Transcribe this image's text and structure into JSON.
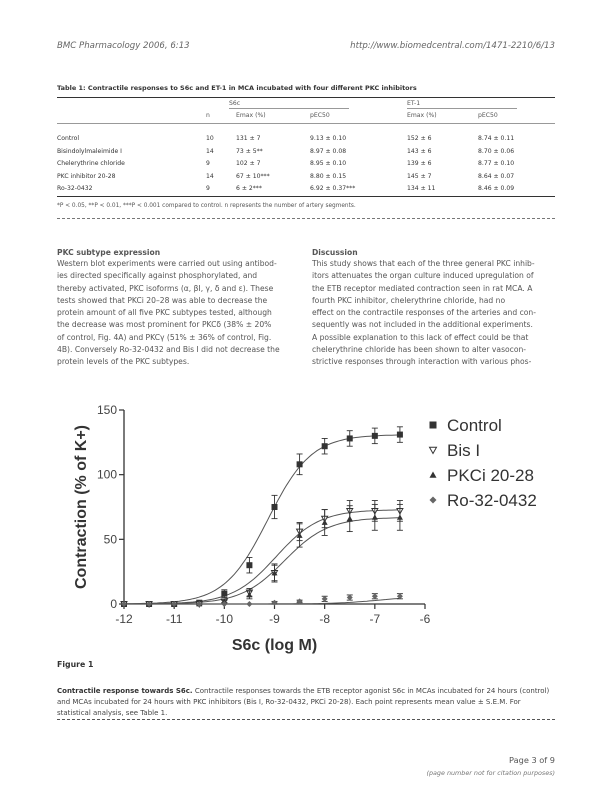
{
  "header": {
    "journal": "BMC Pharmacology 2006, 6:13",
    "url": "http://www.biomedcentral.com/1471-2210/6/13"
  },
  "table": {
    "title": "Table 1: Contractile responses to S6c and ET-1 in MCA incubated with four different PKC inhibitors",
    "group1": "S6c",
    "group2": "ET-1",
    "col_n": "n",
    "col_emax1": "Emax (%)",
    "col_pec1": "pEC50",
    "col_emax2": "Emax (%)",
    "col_pec2": "pEC50",
    "rows": [
      {
        "name": "Control",
        "n": "10",
        "emax1": "131 ± 7",
        "pec1": "9.13 ± 0.10",
        "emax2": "152 ± 6",
        "pec2": "8.74 ± 0.11"
      },
      {
        "name": "Bisindolylmaleimide I",
        "n": "14",
        "emax1": "73 ± 5**",
        "pec1": "8.97 ± 0.08",
        "emax2": "143 ± 6",
        "pec2": "8.70 ± 0.06"
      },
      {
        "name": "Chelerythrine chloride",
        "n": "9",
        "emax1": "102 ± 7",
        "pec1": "8.95 ± 0.10",
        "emax2": "139 ± 6",
        "pec2": "8.77 ± 0.10"
      },
      {
        "name": "PKC inhibitor 20-28",
        "n": "14",
        "emax1": "67 ± 10***",
        "pec1": "8.80 ± 0.15",
        "emax2": "145 ± 7",
        "pec2": "8.64 ± 0.07"
      },
      {
        "name": "Ro-32-0432",
        "n": "9",
        "emax1": "6 ± 2***",
        "pec1": "6.92 ± 0.37***",
        "emax2": "134 ± 11",
        "pec2": "8.46 ± 0.09"
      }
    ],
    "footnote": "*P < 0.05, **P < 0.01, ***P < 0.001 compared to control. n represents the number of artery segments."
  },
  "left_col": {
    "heading": "PKC subtype expression",
    "lines": [
      "Western blot experiments were carried out using antibod-",
      "ies directed specifically against phosphorylated, and",
      "thereby activated, PKC isoforms (α, βI, γ, δ and ε). These",
      "tests showed that PKCi 20–28 was able to decrease the",
      "protein amount of all five PKC subtypes tested, although",
      "the decrease was most prominent for PKCδ (38% ± 20%",
      "of control, Fig. 4A) and PKCγ (51% ± 36% of control, Fig.",
      "4B). Conversely Ro-32-0432 and Bis I did not decrease the",
      "protein levels of the PKC subtypes."
    ]
  },
  "right_col": {
    "heading": "Discussion",
    "lines": [
      "This study shows that each of the three general PKC inhib-",
      "itors attenuates the organ culture induced upregulation of",
      "the ETB receptor mediated contraction seen in rat MCA. A",
      "fourth PKC inhibitor, chelerythrine chloride, had no",
      "effect on the contractile responses of the arteries and con-",
      "sequently was not included in the additional experiments.",
      "A possible explanation to this lack of effect could be that",
      "chelerythrine chloride has been shown to alter vasocon-",
      "strictive responses through interaction with various phos-"
    ]
  },
  "chart_data": {
    "type": "scatter",
    "xlabel": "S6c (log M)",
    "ylabel": "Contraction (% of K+)",
    "xlim": [
      -12,
      -6
    ],
    "ylim": [
      0,
      150
    ],
    "xticks": [
      "-12",
      "-11",
      "-10",
      "-9",
      "-8",
      "-7",
      "-6"
    ],
    "yticks": [
      "0",
      "50",
      "100",
      "150"
    ],
    "x": [
      -12,
      -11.5,
      -11,
      -10.5,
      -10,
      -9.5,
      -9,
      -8.5,
      -8,
      -7.5,
      -7,
      -6.5
    ],
    "series": [
      {
        "name": "Control",
        "marker": "square",
        "values": [
          0,
          0,
          0,
          1,
          8,
          30,
          75,
          108,
          122,
          128,
          130,
          131
        ],
        "errors": [
          0,
          0,
          0,
          1,
          3,
          6,
          9,
          8,
          6,
          6,
          6,
          6
        ],
        "curve_emax": 131,
        "curve_pec50": 9.13
      },
      {
        "name": "Bis I",
        "marker": "triangle-down",
        "values": [
          0,
          0,
          0,
          0,
          2,
          9,
          24,
          56,
          66,
          72,
          72,
          72
        ],
        "errors": [
          0,
          0,
          0,
          0,
          1,
          3,
          6,
          7,
          7,
          8,
          8,
          8
        ],
        "curve_emax": 73,
        "curve_pec50": 8.97
      },
      {
        "name": "PKCi 20-28",
        "marker": "triangle-up",
        "values": [
          0,
          0,
          0,
          0,
          2,
          7,
          24,
          53,
          63,
          66,
          67,
          67
        ],
        "errors": [
          0,
          0,
          0,
          0,
          1,
          3,
          7,
          9,
          10,
          10,
          10,
          10
        ],
        "curve_emax": 67,
        "curve_pec50": 8.8
      },
      {
        "name": "Ro-32-0432",
        "marker": "diamond",
        "values": [
          0,
          0,
          0,
          0,
          0,
          0,
          1,
          2,
          4,
          5,
          6,
          6
        ],
        "errors": [
          0,
          0,
          0,
          0,
          0,
          0,
          1,
          1,
          2,
          2,
          2,
          2
        ],
        "curve_emax": 6,
        "curve_pec50": 6.92
      }
    ],
    "legend": "right"
  },
  "figure": {
    "label": "Figure 1",
    "caption_title": "Contractile response towards S6c.",
    "caption_text": " Contractile responses towards the ETB receptor agonist S6c in MCAs incubated for 24 hours (control) and MCAs incubated for 24 hours with PKC inhibitors (Bis I, Ro-32-0432, PKCi 20-28). Each point represents mean value ± S.E.M. For statistical analysis, see Table 1."
  },
  "footer": {
    "page": "Page 3 of 9",
    "note": "(page number not for citation purposes)"
  }
}
